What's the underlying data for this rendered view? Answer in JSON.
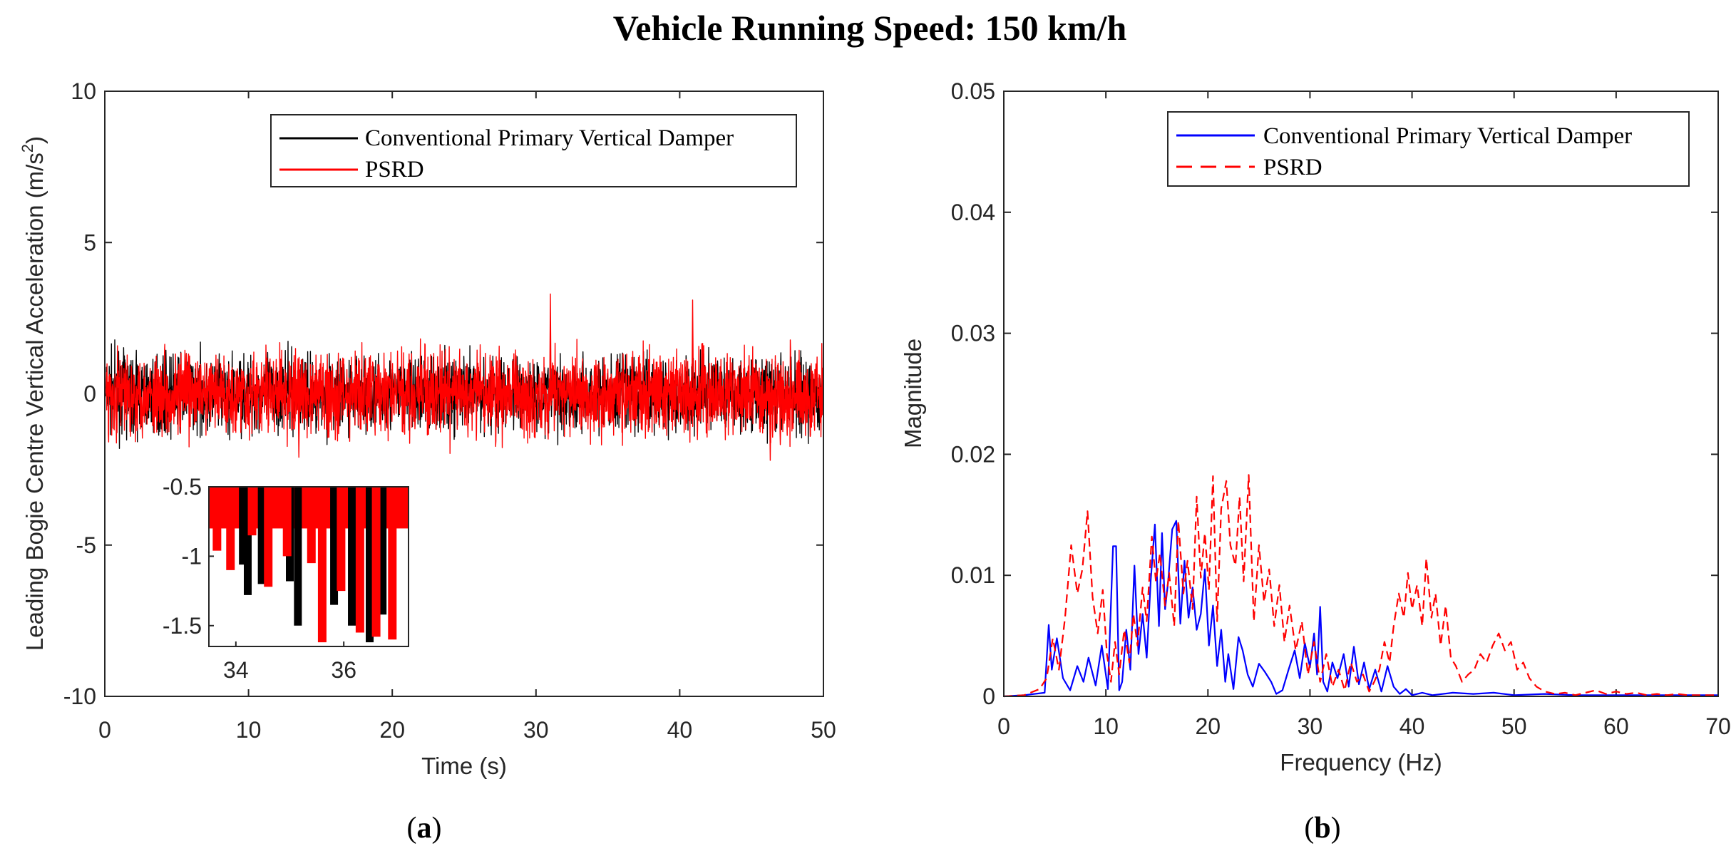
{
  "figure_title": "Vehicle Running Speed: 150 km/h",
  "colors": {
    "black": "#000000",
    "red": "#ff0000",
    "blue": "#0000ff",
    "axis": "#262626"
  },
  "chart_data": [
    {
      "id": "a",
      "panel_label": "(a)",
      "label_text": "a",
      "type": "line",
      "title": "",
      "xlabel": "Time (s)",
      "ylabel": "Leading Bogie Centre Vertical Acceleration (m/s",
      "ylabel_sup": "2",
      "ylabel_end": ")",
      "xlim": [
        0,
        50
      ],
      "ylim": [
        -10,
        10
      ],
      "xticks": [
        0,
        10,
        20,
        30,
        40,
        50
      ],
      "yticks": [
        -10,
        -5,
        0,
        5,
        10
      ],
      "xtick_labels": [
        "0",
        "10",
        "20",
        "30",
        "40",
        "50"
      ],
      "ytick_labels": [
        "-10",
        "-5",
        "0",
        "5",
        "10"
      ],
      "legend_position": "top-right",
      "series": [
        {
          "name": "Conventional Primary Vertical Damper",
          "color": "#000000",
          "style": "solid",
          "signal": "random vibration, approx. range -2.1 to 2.3 m/s^2, peak approx. 2.3 at t=31"
        },
        {
          "name": "PSRD",
          "color": "#ff0000",
          "style": "solid",
          "signal": "random vibration, approx. range -2.2 to 3.3 m/s^2, peaks approx. 3.3 at t=31 and 3.1 at t=41"
        }
      ],
      "peaks": [
        {
          "x": 31.0,
          "y": 3.3
        },
        {
          "x": 40.9,
          "y": 3.1
        },
        {
          "x": 46.3,
          "y": -2.2
        },
        {
          "x": 13.5,
          "y": -2.1
        }
      ],
      "inset": {
        "xlim": [
          33.5,
          37.2
        ],
        "ylim": [
          -1.65,
          -0.5
        ],
        "xticks": [
          34,
          36
        ],
        "yticks": [
          -1.5,
          -1,
          -0.5
        ],
        "xtick_labels": [
          "34",
          "36"
        ],
        "ytick_labels": [
          "-1.5",
          "-1",
          "-0.5"
        ],
        "black_minima": [
          {
            "x": 34.13,
            "y": -1.06
          },
          {
            "x": 34.22,
            "y": -1.28
          },
          {
            "x": 34.48,
            "y": -1.2
          },
          {
            "x": 35.0,
            "y": -1.18
          },
          {
            "x": 35.15,
            "y": -1.5
          },
          {
            "x": 35.82,
            "y": -1.35
          },
          {
            "x": 36.15,
            "y": -1.5
          },
          {
            "x": 36.48,
            "y": -1.62
          },
          {
            "x": 36.72,
            "y": -1.42
          }
        ],
        "red_minima": [
          {
            "x": 33.65,
            "y": -0.96
          },
          {
            "x": 33.9,
            "y": -1.1
          },
          {
            "x": 34.3,
            "y": -0.85
          },
          {
            "x": 34.6,
            "y": -1.22
          },
          {
            "x": 34.95,
            "y": -1.0
          },
          {
            "x": 35.4,
            "y": -1.05
          },
          {
            "x": 35.6,
            "y": -1.62
          },
          {
            "x": 35.95,
            "y": -1.25
          },
          {
            "x": 36.3,
            "y": -1.55
          },
          {
            "x": 36.6,
            "y": -1.58
          },
          {
            "x": 36.9,
            "y": -1.6
          }
        ]
      }
    },
    {
      "id": "b",
      "panel_label": "(b)",
      "label_text": "b",
      "type": "line",
      "title": "",
      "xlabel": "Frequency (Hz)",
      "ylabel": "Magnitude",
      "xlim": [
        0,
        70
      ],
      "ylim": [
        0,
        0.05
      ],
      "xticks": [
        0,
        10,
        20,
        30,
        40,
        50,
        60,
        70
      ],
      "yticks": [
        0,
        0.01,
        0.02,
        0.03,
        0.04,
        0.05
      ],
      "xtick_labels": [
        "0",
        "10",
        "20",
        "30",
        "40",
        "50",
        "60",
        "70"
      ],
      "ytick_labels": [
        "0",
        "0.01",
        "0.02",
        "0.03",
        "0.04",
        "0.05"
      ],
      "legend_position": "top-right",
      "series": [
        {
          "name": "Conventional Primary Vertical Damper",
          "color": "#0000ff",
          "style": "solid",
          "x": [
            0,
            2,
            4,
            4.4,
            4.7,
            5.2,
            5.8,
            6.5,
            7.2,
            7.8,
            8.3,
            9.0,
            9.6,
            10.2,
            10.7,
            11.0,
            11.3,
            11.6,
            12.0,
            12.4,
            12.8,
            13.2,
            13.6,
            14.0,
            14.4,
            14.8,
            15.2,
            15.5,
            15.8,
            16.1,
            16.5,
            16.9,
            17.3,
            17.7,
            18.1,
            18.5,
            18.9,
            19.3,
            19.7,
            20.1,
            20.5,
            20.9,
            21.3,
            21.7,
            22.0,
            22.5,
            23.0,
            23.4,
            23.9,
            24.4,
            25.0,
            25.6,
            26.2,
            26.7,
            27.3,
            27.9,
            28.5,
            29.0,
            29.5,
            30.0,
            30.4,
            30.7,
            31.0,
            31.3,
            31.7,
            32.2,
            32.7,
            33.3,
            33.8,
            34.3,
            34.8,
            35.3,
            35.8,
            36.4,
            37.0,
            37.6,
            38.2,
            38.8,
            39.4,
            40.0,
            41.0,
            42.0,
            44.0,
            46.0,
            48.0,
            50.0,
            53.0,
            56.0,
            60.0,
            65.0,
            70.0
          ],
          "y": [
            0,
            0.0001,
            0.0003,
            0.0059,
            0.0022,
            0.0048,
            0.0015,
            0.0005,
            0.0025,
            0.0012,
            0.0032,
            0.0009,
            0.0042,
            0.0006,
            0.0124,
            0.0124,
            0.0005,
            0.0012,
            0.0055,
            0.0022,
            0.0108,
            0.0035,
            0.0068,
            0.0032,
            0.0096,
            0.0142,
            0.0058,
            0.0135,
            0.0072,
            0.0095,
            0.0138,
            0.0145,
            0.006,
            0.0112,
            0.0065,
            0.009,
            0.0055,
            0.0068,
            0.0105,
            0.0042,
            0.0075,
            0.0025,
            0.0055,
            0.0012,
            0.0035,
            0.0006,
            0.0049,
            0.0038,
            0.0018,
            0.0008,
            0.0027,
            0.002,
            0.0012,
            0.0002,
            0.0005,
            0.0022,
            0.0038,
            0.0015,
            0.0044,
            0.0024,
            0.0052,
            0.0018,
            0.0074,
            0.0012,
            0.0004,
            0.0028,
            0.0015,
            0.0035,
            0.0008,
            0.0041,
            0.001,
            0.0028,
            0.0006,
            0.0022,
            0.0004,
            0.0025,
            0.0008,
            0.0002,
            0.0006,
            0.0001,
            0.0003,
            0.0001,
            0.0003,
            0.0002,
            0.0003,
            0.0001,
            0.0002,
            0.0001,
            0.0001,
            0.0001,
            0.0001
          ]
        },
        {
          "name": "PSRD",
          "color": "#ff0000",
          "style": "dashed",
          "x": [
            0,
            2,
            3.5,
            4.2,
            4.8,
            5.4,
            6.0,
            6.6,
            7.2,
            7.7,
            8.2,
            8.7,
            9.2,
            9.7,
            10.1,
            10.5,
            10.9,
            11.3,
            11.8,
            12.3,
            12.7,
            13.1,
            13.6,
            14.0,
            14.5,
            14.9,
            15.3,
            15.8,
            16.2,
            16.7,
            17.1,
            17.6,
            18.0,
            18.5,
            18.9,
            19.3,
            19.7,
            20.1,
            20.5,
            20.9,
            21.3,
            21.8,
            22.2,
            22.7,
            23.1,
            23.5,
            24.0,
            24.5,
            25.0,
            25.5,
            26.0,
            26.5,
            27.0,
            27.5,
            28.0,
            28.6,
            29.2,
            29.8,
            30.4,
            31.0,
            31.6,
            32.2,
            32.8,
            33.4,
            34.0,
            34.6,
            35.2,
            35.8,
            36.3,
            36.8,
            37.3,
            37.8,
            38.2,
            38.7,
            39.2,
            39.6,
            40.0,
            40.5,
            41.0,
            41.4,
            41.9,
            42.3,
            42.8,
            43.3,
            43.8,
            44.3,
            44.9,
            45.5,
            46.1,
            46.7,
            47.3,
            47.9,
            48.5,
            49.1,
            49.7,
            50.3,
            50.9,
            51.5,
            52.2,
            53.0,
            54.0,
            55.0,
            56.0,
            57.0,
            58.0,
            59.0,
            60.0,
            61.0,
            62.0,
            63.0,
            64.0,
            65.0,
            66.0,
            67.0,
            68.0,
            69.0,
            70.0
          ],
          "y": [
            0,
            0.0001,
            0.0006,
            0.0015,
            0.0048,
            0.0022,
            0.0065,
            0.0125,
            0.0085,
            0.0105,
            0.0153,
            0.0082,
            0.0052,
            0.0088,
            0.0035,
            0.0012,
            0.0045,
            0.0018,
            0.0055,
            0.0028,
            0.0068,
            0.0042,
            0.009,
            0.0062,
            0.0132,
            0.0095,
            0.0118,
            0.0075,
            0.0102,
            0.0058,
            0.0145,
            0.0085,
            0.0112,
            0.0072,
            0.0165,
            0.0098,
            0.0135,
            0.0088,
            0.0182,
            0.0062,
            0.0155,
            0.0178,
            0.0125,
            0.0108,
            0.0165,
            0.0095,
            0.0183,
            0.0062,
            0.0125,
            0.0078,
            0.0105,
            0.0058,
            0.0092,
            0.0045,
            0.0075,
            0.0038,
            0.0062,
            0.0018,
            0.0045,
            0.0012,
            0.0035,
            0.0008,
            0.0022,
            0.0005,
            0.0028,
            0.0012,
            0.0018,
            0.0004,
            0.0012,
            0.0022,
            0.0045,
            0.0028,
            0.0058,
            0.0085,
            0.0065,
            0.0102,
            0.0072,
            0.0092,
            0.0058,
            0.0114,
            0.0065,
            0.0085,
            0.0042,
            0.0075,
            0.0032,
            0.0025,
            0.0012,
            0.0018,
            0.0022,
            0.0035,
            0.0028,
            0.0042,
            0.0052,
            0.0038,
            0.0045,
            0.0022,
            0.0028,
            0.0015,
            0.0008,
            0.0004,
            0.0002,
            0.0003,
            0.0001,
            0.0003,
            0.0005,
            0.0002,
            0.0004,
            0.0002,
            0.0003,
            0.0001,
            0.0002,
            0.0001,
            0.0002,
            0.0001,
            0.0001,
            0.0001,
            0.0001
          ]
        }
      ]
    }
  ]
}
